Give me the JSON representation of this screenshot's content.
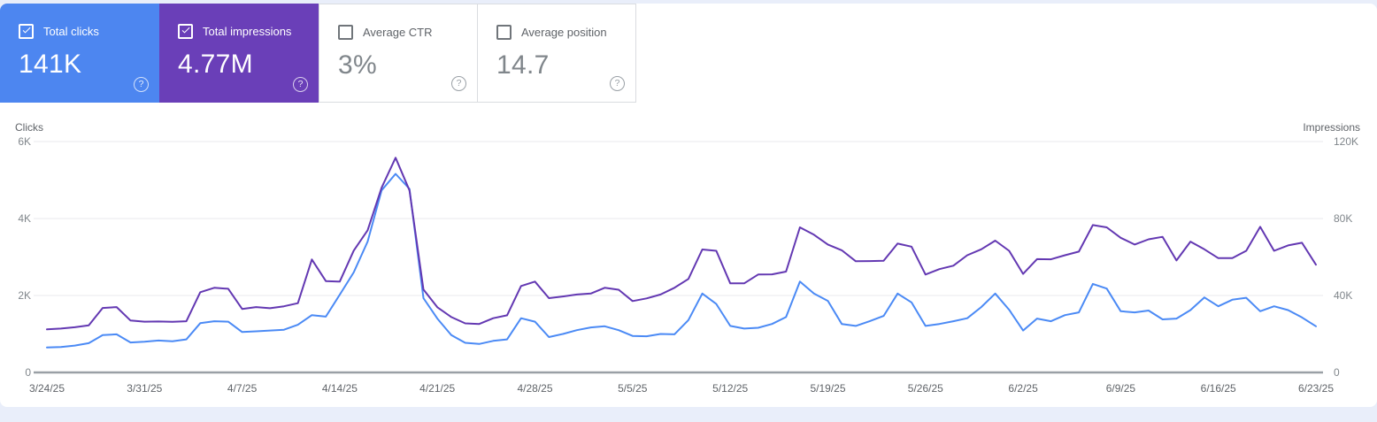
{
  "cards": [
    {
      "label": "Total clicks",
      "value": "141K",
      "checked": true,
      "bg": "#4d86f0",
      "text_color": "#ffffff"
    },
    {
      "label": "Total impressions",
      "value": "4.77M",
      "checked": true,
      "bg": "#6a3fb8",
      "text_color": "#ffffff"
    },
    {
      "label": "Average CTR",
      "value": "3%",
      "checked": false,
      "bg": "#ffffff",
      "text_color": "#80868b"
    },
    {
      "label": "Average position",
      "value": "14.7",
      "checked": false,
      "bg": "#ffffff",
      "text_color": "#80868b"
    }
  ],
  "help_icon_glyph": "?",
  "colors": {
    "page_background": "#e9eefa",
    "panel_background": "#ffffff",
    "clicks_blue": "#4b8af5",
    "impressions_purple": "#6338b2",
    "gridline": "#e8eaed",
    "axis_line": "#9aa0a6",
    "tick_text": "#80868b",
    "card_border": "#dadce0"
  },
  "chart_data": {
    "type": "line",
    "title": "",
    "legend_position": "none",
    "grid": true,
    "x_is_daily": true,
    "date_start": "3/24/25",
    "date_end": "6/23/25",
    "x_tick_labels": [
      "3/24/25",
      "3/31/25",
      "4/7/25",
      "4/14/25",
      "4/21/25",
      "4/28/25",
      "5/5/25",
      "5/12/25",
      "5/19/25",
      "5/26/25",
      "6/2/25",
      "6/9/25",
      "6/16/25",
      "6/23/25"
    ],
    "left_axis": {
      "title": "Clicks",
      "max": 6000,
      "ticks": [
        {
          "v": 0,
          "label": "0"
        },
        {
          "v": 2000,
          "label": "2K"
        },
        {
          "v": 4000,
          "label": "4K"
        },
        {
          "v": 6000,
          "label": "6K"
        }
      ]
    },
    "right_axis": {
      "title": "Impressions",
      "max": 120000,
      "ticks": [
        {
          "v": 0,
          "label": "0"
        },
        {
          "v": 40000,
          "label": "40K"
        },
        {
          "v": 80000,
          "label": "80K"
        },
        {
          "v": 120000,
          "label": "120K"
        }
      ]
    },
    "series": [
      {
        "name": "Clicks",
        "axis": "left",
        "color": "#4b8af5",
        "values": [
          650,
          660,
          700,
          760,
          970,
          990,
          780,
          800,
          830,
          810,
          860,
          1280,
          1330,
          1320,
          1050,
          1070,
          1090,
          1110,
          1240,
          1490,
          1450,
          2020,
          2600,
          3400,
          4730,
          5160,
          4770,
          1930,
          1400,
          970,
          770,
          740,
          820,
          860,
          1410,
          1320,
          920,
          1000,
          1100,
          1170,
          1200,
          1100,
          950,
          940,
          1000,
          990,
          1360,
          2050,
          1780,
          1210,
          1140,
          1160,
          1260,
          1440,
          2360,
          2050,
          1860,
          1260,
          1210,
          1330,
          1470,
          2050,
          1820,
          1210,
          1260,
          1330,
          1410,
          1700,
          2050,
          1630,
          1090,
          1400,
          1330,
          1490,
          1560,
          2300,
          2180,
          1590,
          1560,
          1610,
          1380,
          1400,
          1620,
          1950,
          1720,
          1890,
          1940,
          1590,
          1720,
          1620,
          1430,
          1200
        ]
      },
      {
        "name": "Impressions",
        "axis": "right",
        "color": "#6338b2",
        "values": [
          22400,
          22800,
          23500,
          24500,
          33500,
          34000,
          27000,
          26400,
          26500,
          26300,
          26600,
          41700,
          44000,
          43500,
          33000,
          34000,
          33400,
          34400,
          36000,
          58700,
          47500,
          47200,
          63300,
          73900,
          96000,
          111600,
          94600,
          43100,
          33900,
          28800,
          25500,
          25200,
          28200,
          29700,
          44900,
          47200,
          38600,
          39500,
          40500,
          41000,
          44000,
          43000,
          37100,
          38500,
          40500,
          44000,
          48600,
          63900,
          63200,
          46300,
          46300,
          50900,
          51000,
          52400,
          75400,
          71600,
          66500,
          63500,
          57800,
          57900,
          58000,
          67000,
          65400,
          50900,
          53700,
          55500,
          60900,
          64000,
          68500,
          63200,
          51200,
          58900,
          58800,
          60900,
          62800,
          76600,
          75400,
          70000,
          66500,
          69200,
          70500,
          58200,
          68000,
          64000,
          59400,
          59400,
          63200,
          75700,
          63200,
          66000,
          67400,
          56000
        ]
      }
    ]
  }
}
